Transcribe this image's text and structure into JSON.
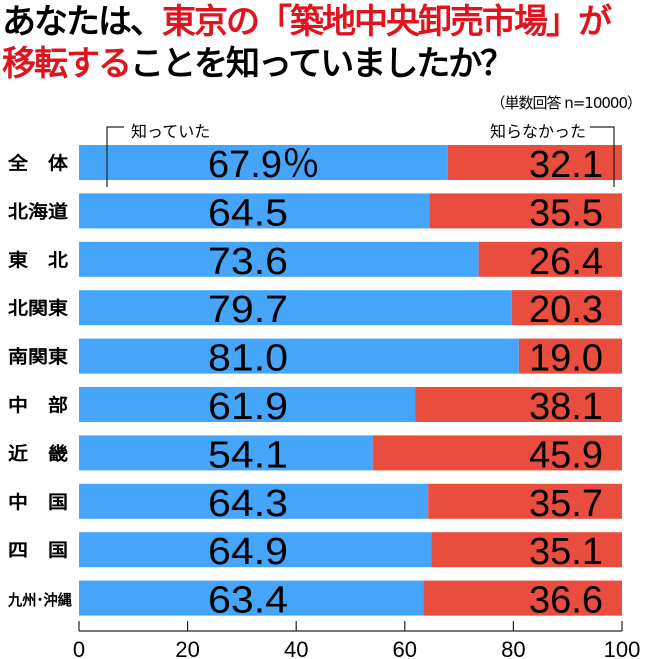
{
  "chart_data": {
    "type": "bar",
    "stacked": true,
    "orientation": "horizontal",
    "title_parts": [
      {
        "text": "あなたは、",
        "color": "#000000"
      },
      {
        "text": "東京の「築地中央卸売市場」",
        "color": "#e0141e"
      },
      {
        "text": "が",
        "color": "#e0141e"
      }
    ],
    "title_line2_parts": [
      {
        "text": "移転する",
        "color": "#e0141e"
      },
      {
        "text": "ことを知っていましたか？",
        "color": "#000000"
      }
    ],
    "note": "（単数回答 n=10000）",
    "categories": [
      "全　体",
      "北海道",
      "東　北",
      "北関東",
      "南関東",
      "中　部",
      "近　畿",
      "中　国",
      "四　国",
      "九州･沖縄"
    ],
    "series": [
      {
        "name": "知っていた",
        "color": "#45a5fb",
        "values": [
          67.9,
          64.5,
          73.6,
          79.7,
          81.0,
          61.9,
          54.1,
          64.3,
          64.9,
          63.4
        ]
      },
      {
        "name": "知らなかった",
        "color": "#e84d3d",
        "values": [
          32.1,
          35.5,
          26.4,
          20.3,
          19.0,
          38.1,
          45.9,
          35.7,
          35.1,
          36.6
        ]
      }
    ],
    "value_labels_1": [
      "67.9％",
      "64.5",
      "73.6",
      "79.7",
      "81.0",
      "61.9",
      "54.1",
      "64.3",
      "64.9",
      "63.4"
    ],
    "value_labels_2": [
      "32.1",
      "35.5",
      "26.4",
      "20.3",
      "19.0",
      "38.1",
      "45.9",
      "35.7",
      "35.1",
      "36.6"
    ],
    "xlim": [
      0,
      100
    ],
    "xticks": [
      "0",
      "20",
      "40",
      "60",
      "80",
      "100"
    ],
    "grid": false,
    "legend": "top, bracketed labels above first bar"
  }
}
